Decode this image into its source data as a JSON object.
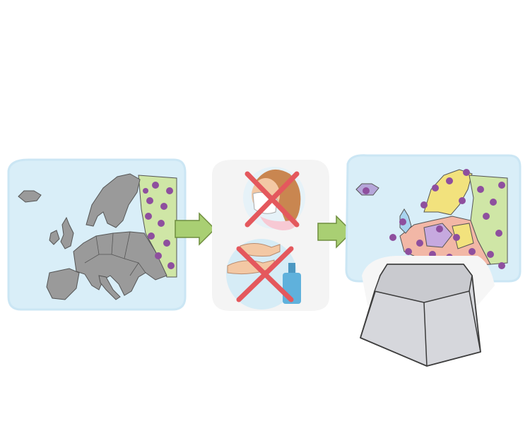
{
  "scene": {
    "panels": [
      {
        "id": "europe-before",
        "icon": "europe-map-icon"
      },
      {
        "id": "prevention",
        "icon": "mask-and-handwash-crossed-icon"
      },
      {
        "id": "europe-after",
        "icon": "europe-map-spread-icon"
      }
    ],
    "arrows": 2,
    "extra_object": "keycap-icon"
  },
  "colors": {
    "sky": "#d9eef8",
    "land": "#9a9a9a",
    "land_stroke": "#555555",
    "green_zone": "#cfe6a6",
    "virus": "#8e4f9e",
    "arrow": "#a9cf73",
    "arrow_stroke": "#6f8e3f",
    "cross": "#e4585d",
    "skin": "#f3c8a4",
    "hair": "#c98650",
    "pink": "#f7c9d4",
    "bottle": "#5fb1dc",
    "keycap": "#d6d7dc",
    "keycap_top": "#c9cacf"
  }
}
